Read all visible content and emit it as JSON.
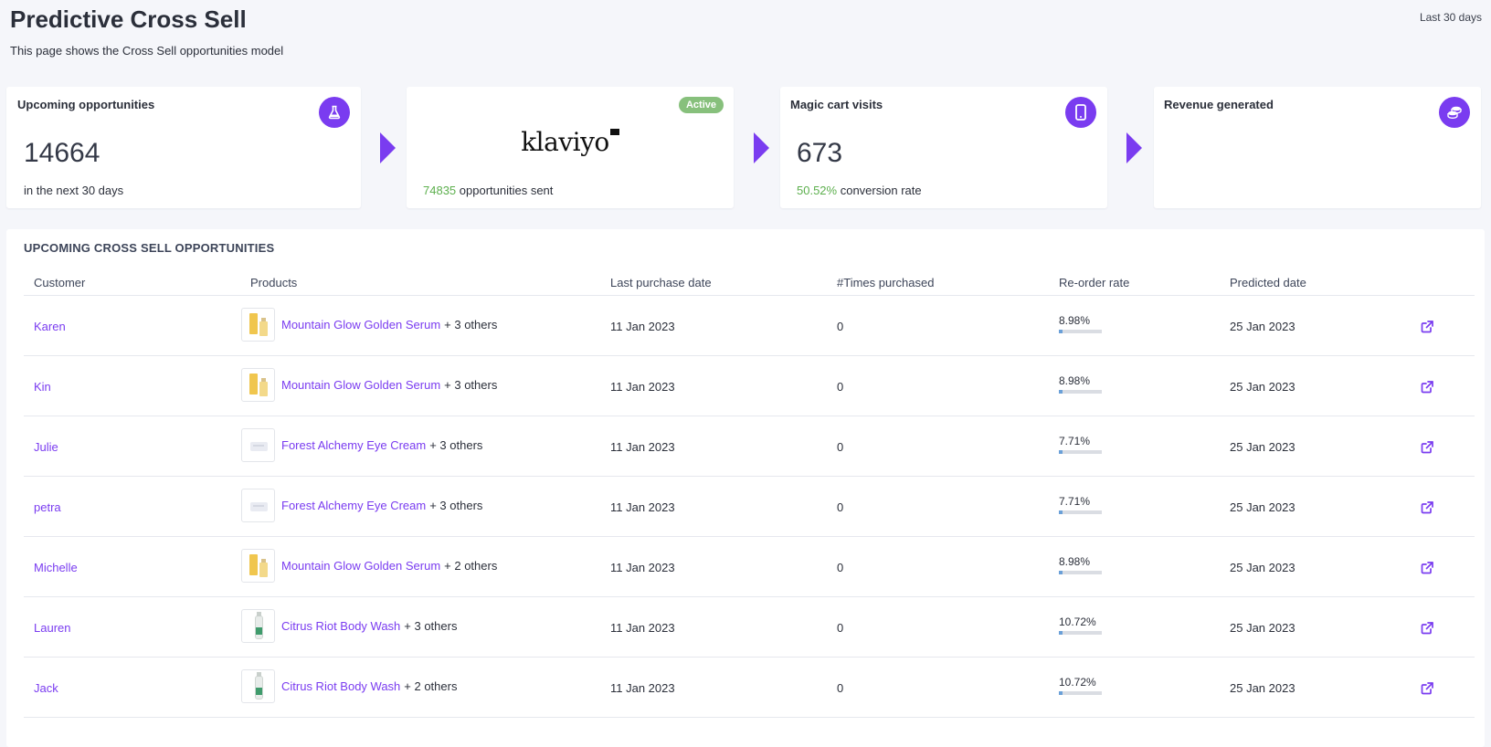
{
  "header": {
    "title": "Predictive Cross Sell",
    "subtitle": "This page shows the Cross Sell opportunities model",
    "period": "Last 30 days"
  },
  "cards": {
    "upcoming": {
      "title": "Upcoming opportunities",
      "value": "14664",
      "caption": "in the next 30 days",
      "icon": "flask-icon"
    },
    "klaviyo": {
      "logo_text": "klaviyo",
      "status": "Active",
      "sent_count": "74835",
      "sent_caption": "opportunities sent"
    },
    "magic_cart": {
      "title": "Magic cart visits",
      "value": "673",
      "rate": "50.52%",
      "rate_caption": "conversion rate",
      "icon": "mobile-phone-icon"
    },
    "revenue": {
      "title": "Revenue generated",
      "icon": "coins-icon"
    }
  },
  "colors": {
    "accent": "#7a3cf0",
    "positive": "#5caf4d",
    "badge": "#87c07c",
    "progress": "#6aa0d8"
  },
  "table": {
    "title": "UPCOMING CROSS SELL OPPORTUNITIES",
    "columns": [
      "Customer",
      "Products",
      "Last purchase date",
      "#Times purchased",
      "Re-order rate",
      "Predicted date"
    ],
    "rows": [
      {
        "customer": "Karen",
        "product": "Mountain Glow Golden Serum",
        "others": "+ 3 others",
        "thumb": "serum",
        "last_purchase": "11 Jan 2023",
        "times": "0",
        "reorder": "8.98%",
        "reorder_value": 0.0898,
        "predicted": "25 Jan 2023"
      },
      {
        "customer": "Kin",
        "product": "Mountain Glow Golden Serum",
        "others": "+ 3 others",
        "thumb": "serum",
        "last_purchase": "11 Jan 2023",
        "times": "0",
        "reorder": "8.98%",
        "reorder_value": 0.0898,
        "predicted": "25 Jan 2023"
      },
      {
        "customer": "Julie",
        "product": "Forest Alchemy Eye Cream",
        "others": "+ 3 others",
        "thumb": "cream",
        "last_purchase": "11 Jan 2023",
        "times": "0",
        "reorder": "7.71%",
        "reorder_value": 0.0771,
        "predicted": "25 Jan 2023"
      },
      {
        "customer": "petra",
        "product": "Forest Alchemy Eye Cream",
        "others": "+ 3 others",
        "thumb": "cream",
        "last_purchase": "11 Jan 2023",
        "times": "0",
        "reorder": "7.71%",
        "reorder_value": 0.0771,
        "predicted": "25 Jan 2023"
      },
      {
        "customer": "Michelle",
        "product": "Mountain Glow Golden Serum",
        "others": "+ 2 others",
        "thumb": "serum",
        "last_purchase": "11 Jan 2023",
        "times": "0",
        "reorder": "8.98%",
        "reorder_value": 0.0898,
        "predicted": "25 Jan 2023"
      },
      {
        "customer": "Lauren",
        "product": "Citrus Riot Body Wash",
        "others": "+ 3 others",
        "thumb": "wash",
        "last_purchase": "11 Jan 2023",
        "times": "0",
        "reorder": "10.72%",
        "reorder_value": 0.1072,
        "predicted": "25 Jan 2023"
      },
      {
        "customer": "Jack",
        "product": "Citrus Riot Body Wash",
        "others": "+ 2 others",
        "thumb": "wash",
        "last_purchase": "11 Jan 2023",
        "times": "0",
        "reorder": "10.72%",
        "reorder_value": 0.1072,
        "predicted": "25 Jan 2023"
      }
    ],
    "row_action_icon": "external-link-icon"
  }
}
